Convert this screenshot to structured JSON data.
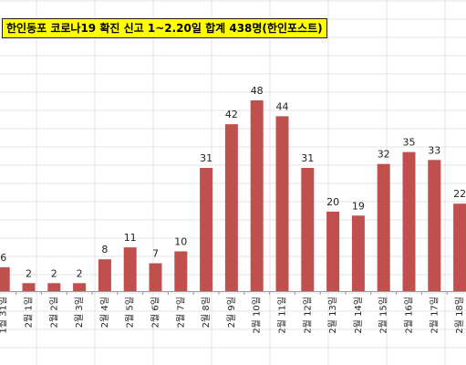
{
  "title": "한인동포 코로나19 확진 신고 1~2.20일 합계 438명(한인포스트)",
  "colors": {
    "bar": "#c0504d",
    "title_bg": "#ffff00",
    "grid": "#e3e3e3"
  },
  "chart_data": {
    "type": "bar",
    "title": "한인동포 코로나19 확진 신고 1~2.20일 합계 438명(한인포스트)",
    "categories": [
      "1월 31일",
      "2월 1일",
      "2월 2일",
      "2월 3일",
      "2월 4일",
      "2월 5일",
      "2월 6일",
      "2월 7일",
      "2월 8일",
      "2월 9일",
      "2월 10일",
      "2월 11일",
      "2월 12일",
      "2월 13일",
      "2월 14일",
      "2월 15일",
      "2월 16일",
      "2월 17일",
      "2월 18일"
    ],
    "values": [
      6,
      2,
      2,
      2,
      8,
      11,
      7,
      10,
      31,
      42,
      48,
      44,
      31,
      20,
      19,
      32,
      35,
      33,
      22
    ],
    "xlabel": "",
    "ylabel": "",
    "ylim": [
      0,
      48
    ],
    "grid": false,
    "legend": "none"
  }
}
